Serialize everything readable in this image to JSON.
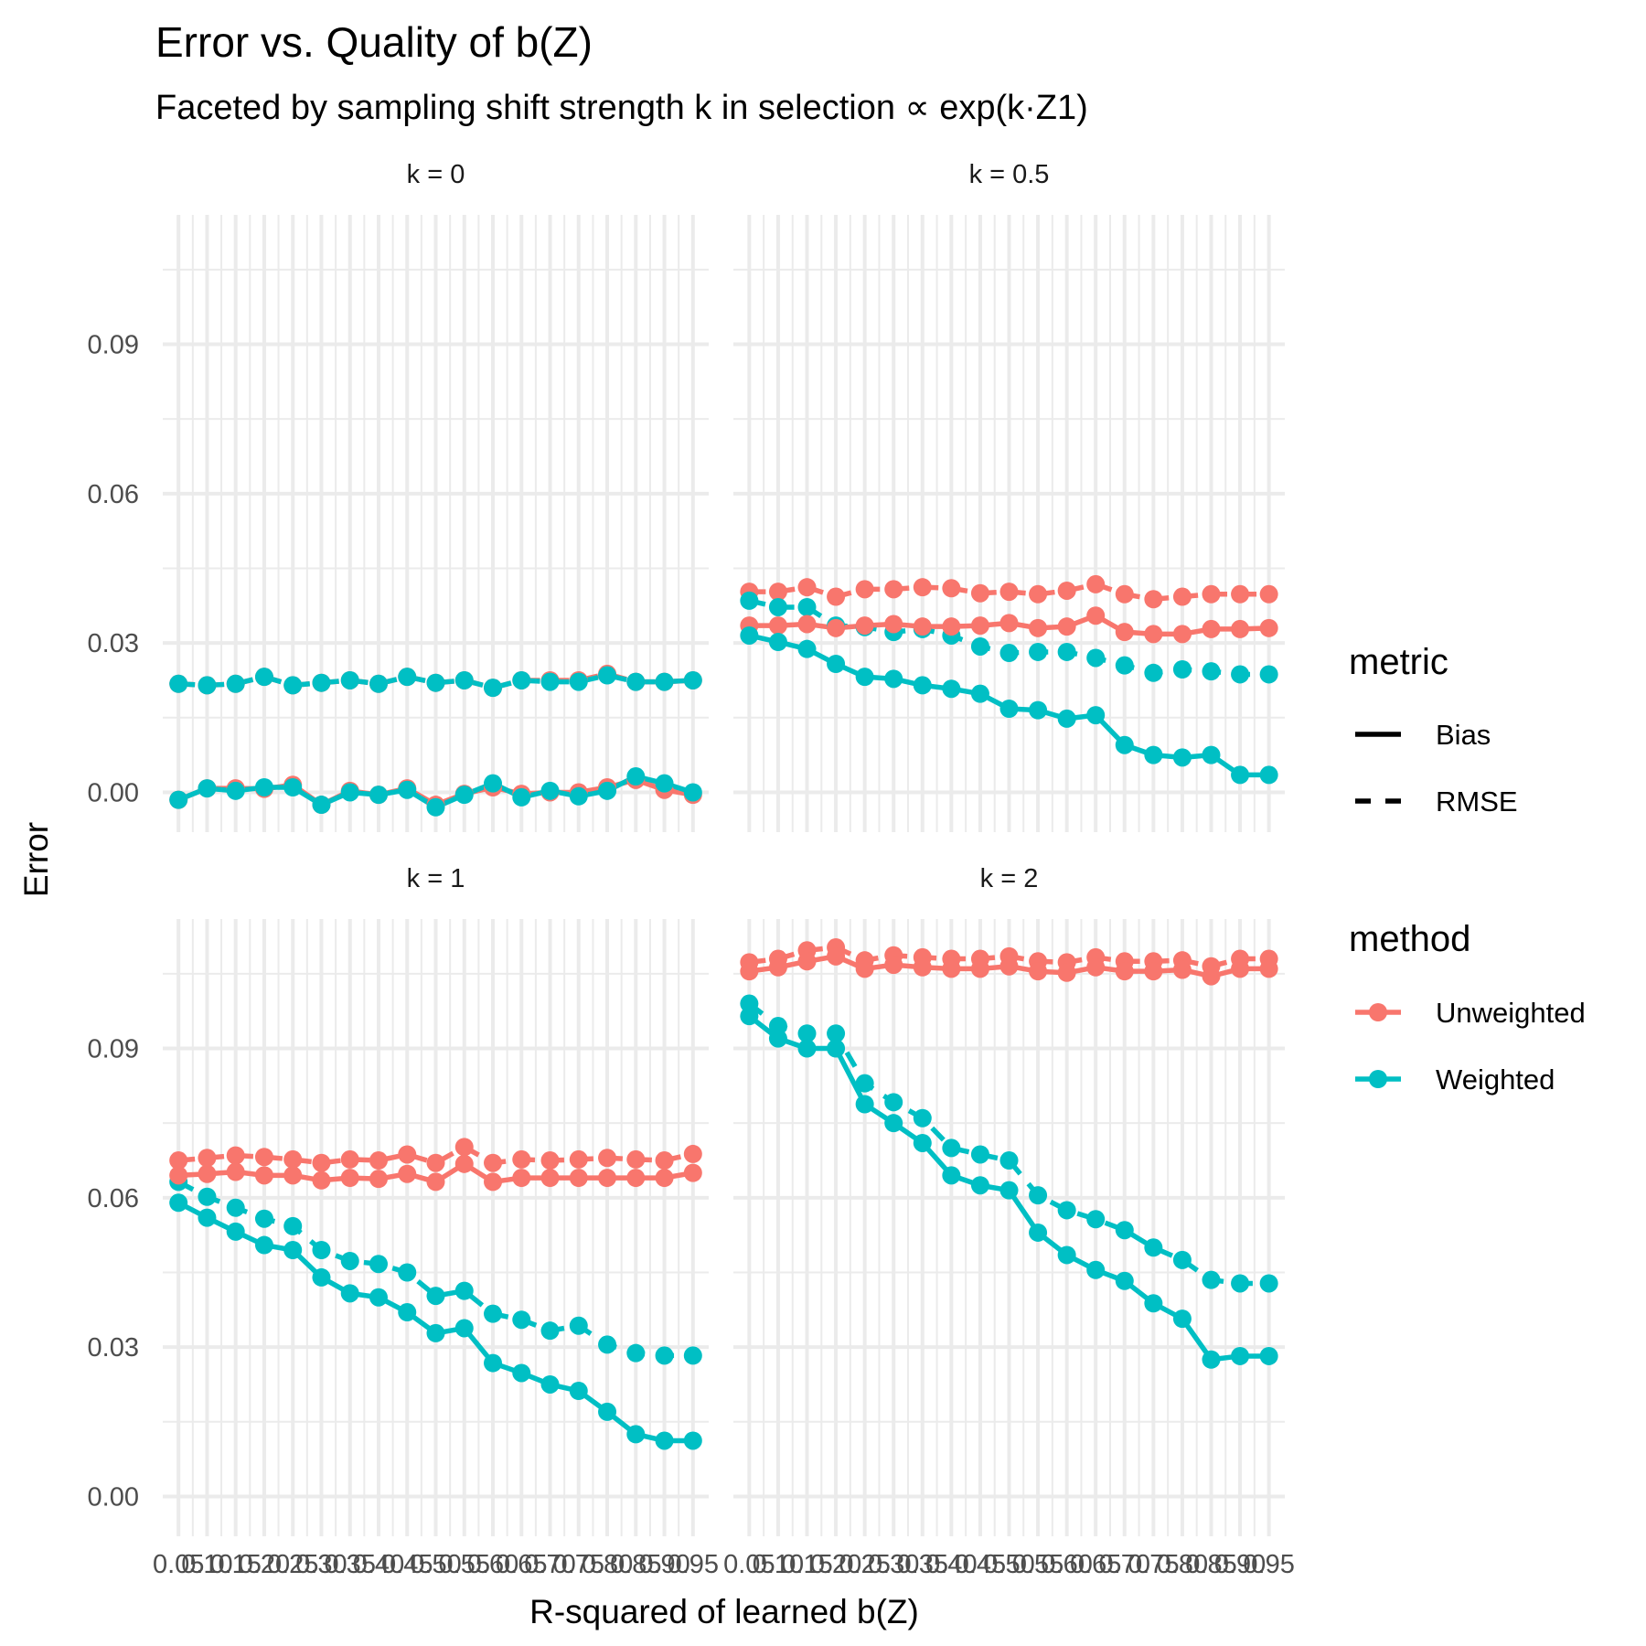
{
  "chart_data": {
    "type": "line",
    "title": "Error vs. Quality of b(Z)",
    "subtitle": "Faceted by sampling shift strength k in selection ∝ exp(k·Z1)",
    "xlabel": "R-squared of learned b(Z)",
    "ylabel": "Error",
    "x": [
      0.05,
      0.1,
      0.15,
      0.2,
      0.25,
      0.3,
      0.35,
      0.4,
      0.45,
      0.5,
      0.55,
      0.6,
      0.65,
      0.7,
      0.75,
      0.8,
      0.85,
      0.9,
      0.95
    ],
    "x_tick_labels": [
      "0.05",
      "0.10",
      "0.15",
      "0.20",
      "0.25",
      "0.30",
      "0.35",
      "0.40",
      "0.45",
      "0.50",
      "0.55",
      "0.60",
      "0.65",
      "0.70",
      "0.75",
      "0.80",
      "0.85",
      "0.90",
      "0.95"
    ],
    "ylim": [
      -0.008,
      0.116
    ],
    "y_ticks": [
      0.0,
      0.03,
      0.06,
      0.09
    ],
    "y_tick_labels": [
      "0.00",
      "0.03",
      "0.06",
      "0.09"
    ],
    "grid": true,
    "legend_position": "right",
    "colors": {
      "Unweighted": "#F8766D",
      "Weighted": "#00BFC4"
    },
    "legend": {
      "metric_title": "metric",
      "metric_items": [
        {
          "label": "Bias",
          "linetype": "solid"
        },
        {
          "label": "RMSE",
          "linetype": "dashed"
        }
      ],
      "method_title": "method",
      "method_items": [
        "Unweighted",
        "Weighted"
      ]
    },
    "facets": [
      {
        "label": "k = 0",
        "series": [
          {
            "method": "Unweighted",
            "metric": "Bias",
            "values": [
              -0.0015,
              0.0008,
              0.0008,
              0.0007,
              0.0015,
              -0.0025,
              0.0003,
              -0.0005,
              0.0008,
              -0.0025,
              -0.0003,
              0.001,
              -0.0003,
              0.0,
              0.0,
              0.001,
              0.0025,
              0.0005,
              -0.0005
            ]
          },
          {
            "method": "Unweighted",
            "metric": "RMSE",
            "values": [
              0.0218,
              0.0215,
              0.0218,
              0.0232,
              0.0215,
              0.022,
              0.0225,
              0.0218,
              0.0232,
              0.022,
              0.0225,
              0.021,
              0.0225,
              0.0225,
              0.0225,
              0.0238,
              0.0222,
              0.0222,
              0.0225
            ]
          },
          {
            "method": "Weighted",
            "metric": "Bias",
            "values": [
              -0.0015,
              0.0008,
              0.0003,
              0.001,
              0.001,
              -0.0025,
              0.0,
              -0.0005,
              0.0005,
              -0.003,
              -0.0005,
              0.0018,
              -0.001,
              0.0003,
              -0.0008,
              0.0003,
              0.0032,
              0.0018,
              0.0
            ]
          },
          {
            "method": "Weighted",
            "metric": "RMSE",
            "values": [
              0.0218,
              0.0215,
              0.0218,
              0.0232,
              0.0215,
              0.022,
              0.0225,
              0.0218,
              0.0232,
              0.022,
              0.0225,
              0.021,
              0.0225,
              0.0222,
              0.0222,
              0.0235,
              0.0222,
              0.0222,
              0.0225
            ]
          }
        ]
      },
      {
        "label": "k = 0.5",
        "series": [
          {
            "method": "Unweighted",
            "metric": "Bias",
            "values": [
              0.0335,
              0.0335,
              0.0338,
              0.033,
              0.0335,
              0.0338,
              0.0333,
              0.0333,
              0.0335,
              0.034,
              0.033,
              0.0333,
              0.0355,
              0.0322,
              0.0318,
              0.0318,
              0.0328,
              0.0328,
              0.033
            ]
          },
          {
            "method": "Unweighted",
            "metric": "RMSE",
            "values": [
              0.0403,
              0.0403,
              0.0412,
              0.0393,
              0.0408,
              0.0408,
              0.0412,
              0.041,
              0.04,
              0.0403,
              0.0398,
              0.0405,
              0.0418,
              0.0398,
              0.0388,
              0.0393,
              0.0398,
              0.0398,
              0.0398
            ]
          },
          {
            "method": "Weighted",
            "metric": "Bias",
            "values": [
              0.0315,
              0.0302,
              0.0288,
              0.0258,
              0.0232,
              0.0228,
              0.0215,
              0.0208,
              0.0198,
              0.0168,
              0.0165,
              0.0148,
              0.0155,
              0.0095,
              0.0075,
              0.007,
              0.0075,
              0.0035,
              0.0035
            ]
          },
          {
            "method": "Weighted",
            "metric": "RMSE",
            "values": [
              0.0385,
              0.0372,
              0.0372,
              0.0335,
              0.0332,
              0.0322,
              0.0328,
              0.0315,
              0.0293,
              0.028,
              0.0282,
              0.0282,
              0.027,
              0.0255,
              0.024,
              0.0247,
              0.0243,
              0.0237,
              0.0237
            ]
          }
        ]
      },
      {
        "label": "k = 1",
        "series": [
          {
            "method": "Unweighted",
            "metric": "Bias",
            "values": [
              0.0645,
              0.0648,
              0.0652,
              0.0645,
              0.0645,
              0.0635,
              0.064,
              0.0638,
              0.0648,
              0.0632,
              0.0668,
              0.0632,
              0.064,
              0.064,
              0.064,
              0.064,
              0.064,
              0.064,
              0.065
            ]
          },
          {
            "method": "Unweighted",
            "metric": "RMSE",
            "values": [
              0.0675,
              0.068,
              0.0685,
              0.0682,
              0.0677,
              0.067,
              0.0677,
              0.0675,
              0.0687,
              0.067,
              0.0702,
              0.067,
              0.0677,
              0.0675,
              0.0677,
              0.068,
              0.0677,
              0.0675,
              0.0688
            ]
          },
          {
            "method": "Weighted",
            "metric": "Bias",
            "values": [
              0.059,
              0.056,
              0.0532,
              0.0505,
              0.0495,
              0.044,
              0.0408,
              0.04,
              0.037,
              0.0328,
              0.0338,
              0.0268,
              0.0248,
              0.0225,
              0.0212,
              0.017,
              0.0125,
              0.0112,
              0.0112
            ]
          },
          {
            "method": "Weighted",
            "metric": "RMSE",
            "values": [
              0.0632,
              0.0602,
              0.058,
              0.0558,
              0.0543,
              0.0495,
              0.0473,
              0.0467,
              0.045,
              0.0403,
              0.0413,
              0.0367,
              0.0355,
              0.0333,
              0.0343,
              0.0305,
              0.0288,
              0.0283,
              0.0283
            ]
          }
        ]
      },
      {
        "label": "k = 2",
        "series": [
          {
            "method": "Unweighted",
            "metric": "Bias",
            "values": [
              0.1055,
              0.1063,
              0.1075,
              0.1085,
              0.106,
              0.1068,
              0.1063,
              0.106,
              0.106,
              0.1065,
              0.1055,
              0.1052,
              0.1063,
              0.1055,
              0.1055,
              0.1058,
              0.1045,
              0.106,
              0.106
            ]
          },
          {
            "method": "Unweighted",
            "metric": "RMSE",
            "values": [
              0.1073,
              0.108,
              0.1097,
              0.1103,
              0.1077,
              0.1087,
              0.1083,
              0.108,
              0.108,
              0.1085,
              0.1075,
              0.1073,
              0.1083,
              0.1075,
              0.1075,
              0.1077,
              0.1065,
              0.108,
              0.108
            ]
          },
          {
            "method": "Weighted",
            "metric": "Bias",
            "values": [
              0.0965,
              0.092,
              0.09,
              0.09,
              0.0788,
              0.075,
              0.071,
              0.0645,
              0.0625,
              0.0615,
              0.053,
              0.0485,
              0.0455,
              0.0433,
              0.0388,
              0.0357,
              0.0275,
              0.0282,
              0.0282
            ]
          },
          {
            "method": "Weighted",
            "metric": "RMSE",
            "values": [
              0.099,
              0.0945,
              0.093,
              0.093,
              0.083,
              0.0792,
              0.076,
              0.07,
              0.0687,
              0.0675,
              0.0605,
              0.0575,
              0.0557,
              0.0535,
              0.05,
              0.0475,
              0.0435,
              0.0428,
              0.0428
            ]
          }
        ]
      }
    ]
  }
}
